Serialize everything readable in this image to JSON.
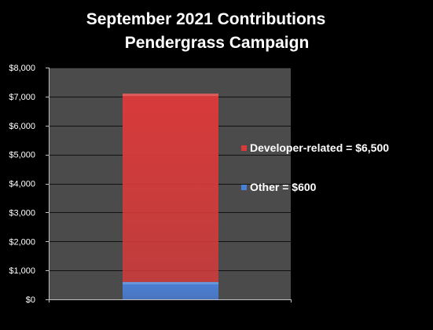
{
  "chart_data": {
    "type": "bar",
    "stacked": true,
    "title": [
      "September 2021 Contributions",
      "Pendergrass Campaign"
    ],
    "xlabel": "",
    "ylabel": "",
    "categories": [
      ""
    ],
    "ylim": [
      0,
      8000
    ],
    "yticks": [
      0,
      1000,
      2000,
      3000,
      4000,
      5000,
      6000,
      7000,
      8000
    ],
    "ytick_labels": [
      "$0",
      "$1,000",
      "$2,000",
      "$3,000",
      "$4,000",
      "$5,000",
      "$6,000",
      "$7,000",
      "$8,000"
    ],
    "grid": true,
    "legend_position": "right",
    "series": [
      {
        "name": "Other = $600",
        "values": [
          600
        ],
        "color": "#4a7fd6"
      },
      {
        "name": "Developer-related = $6,500",
        "values": [
          6500
        ],
        "color": "#d83a3a"
      }
    ]
  },
  "colors": {
    "background": "#000000",
    "plot_area": "#4b4b4b",
    "gridline": "#111111",
    "axis": "#bfbfbf",
    "text": "#ffffff"
  }
}
